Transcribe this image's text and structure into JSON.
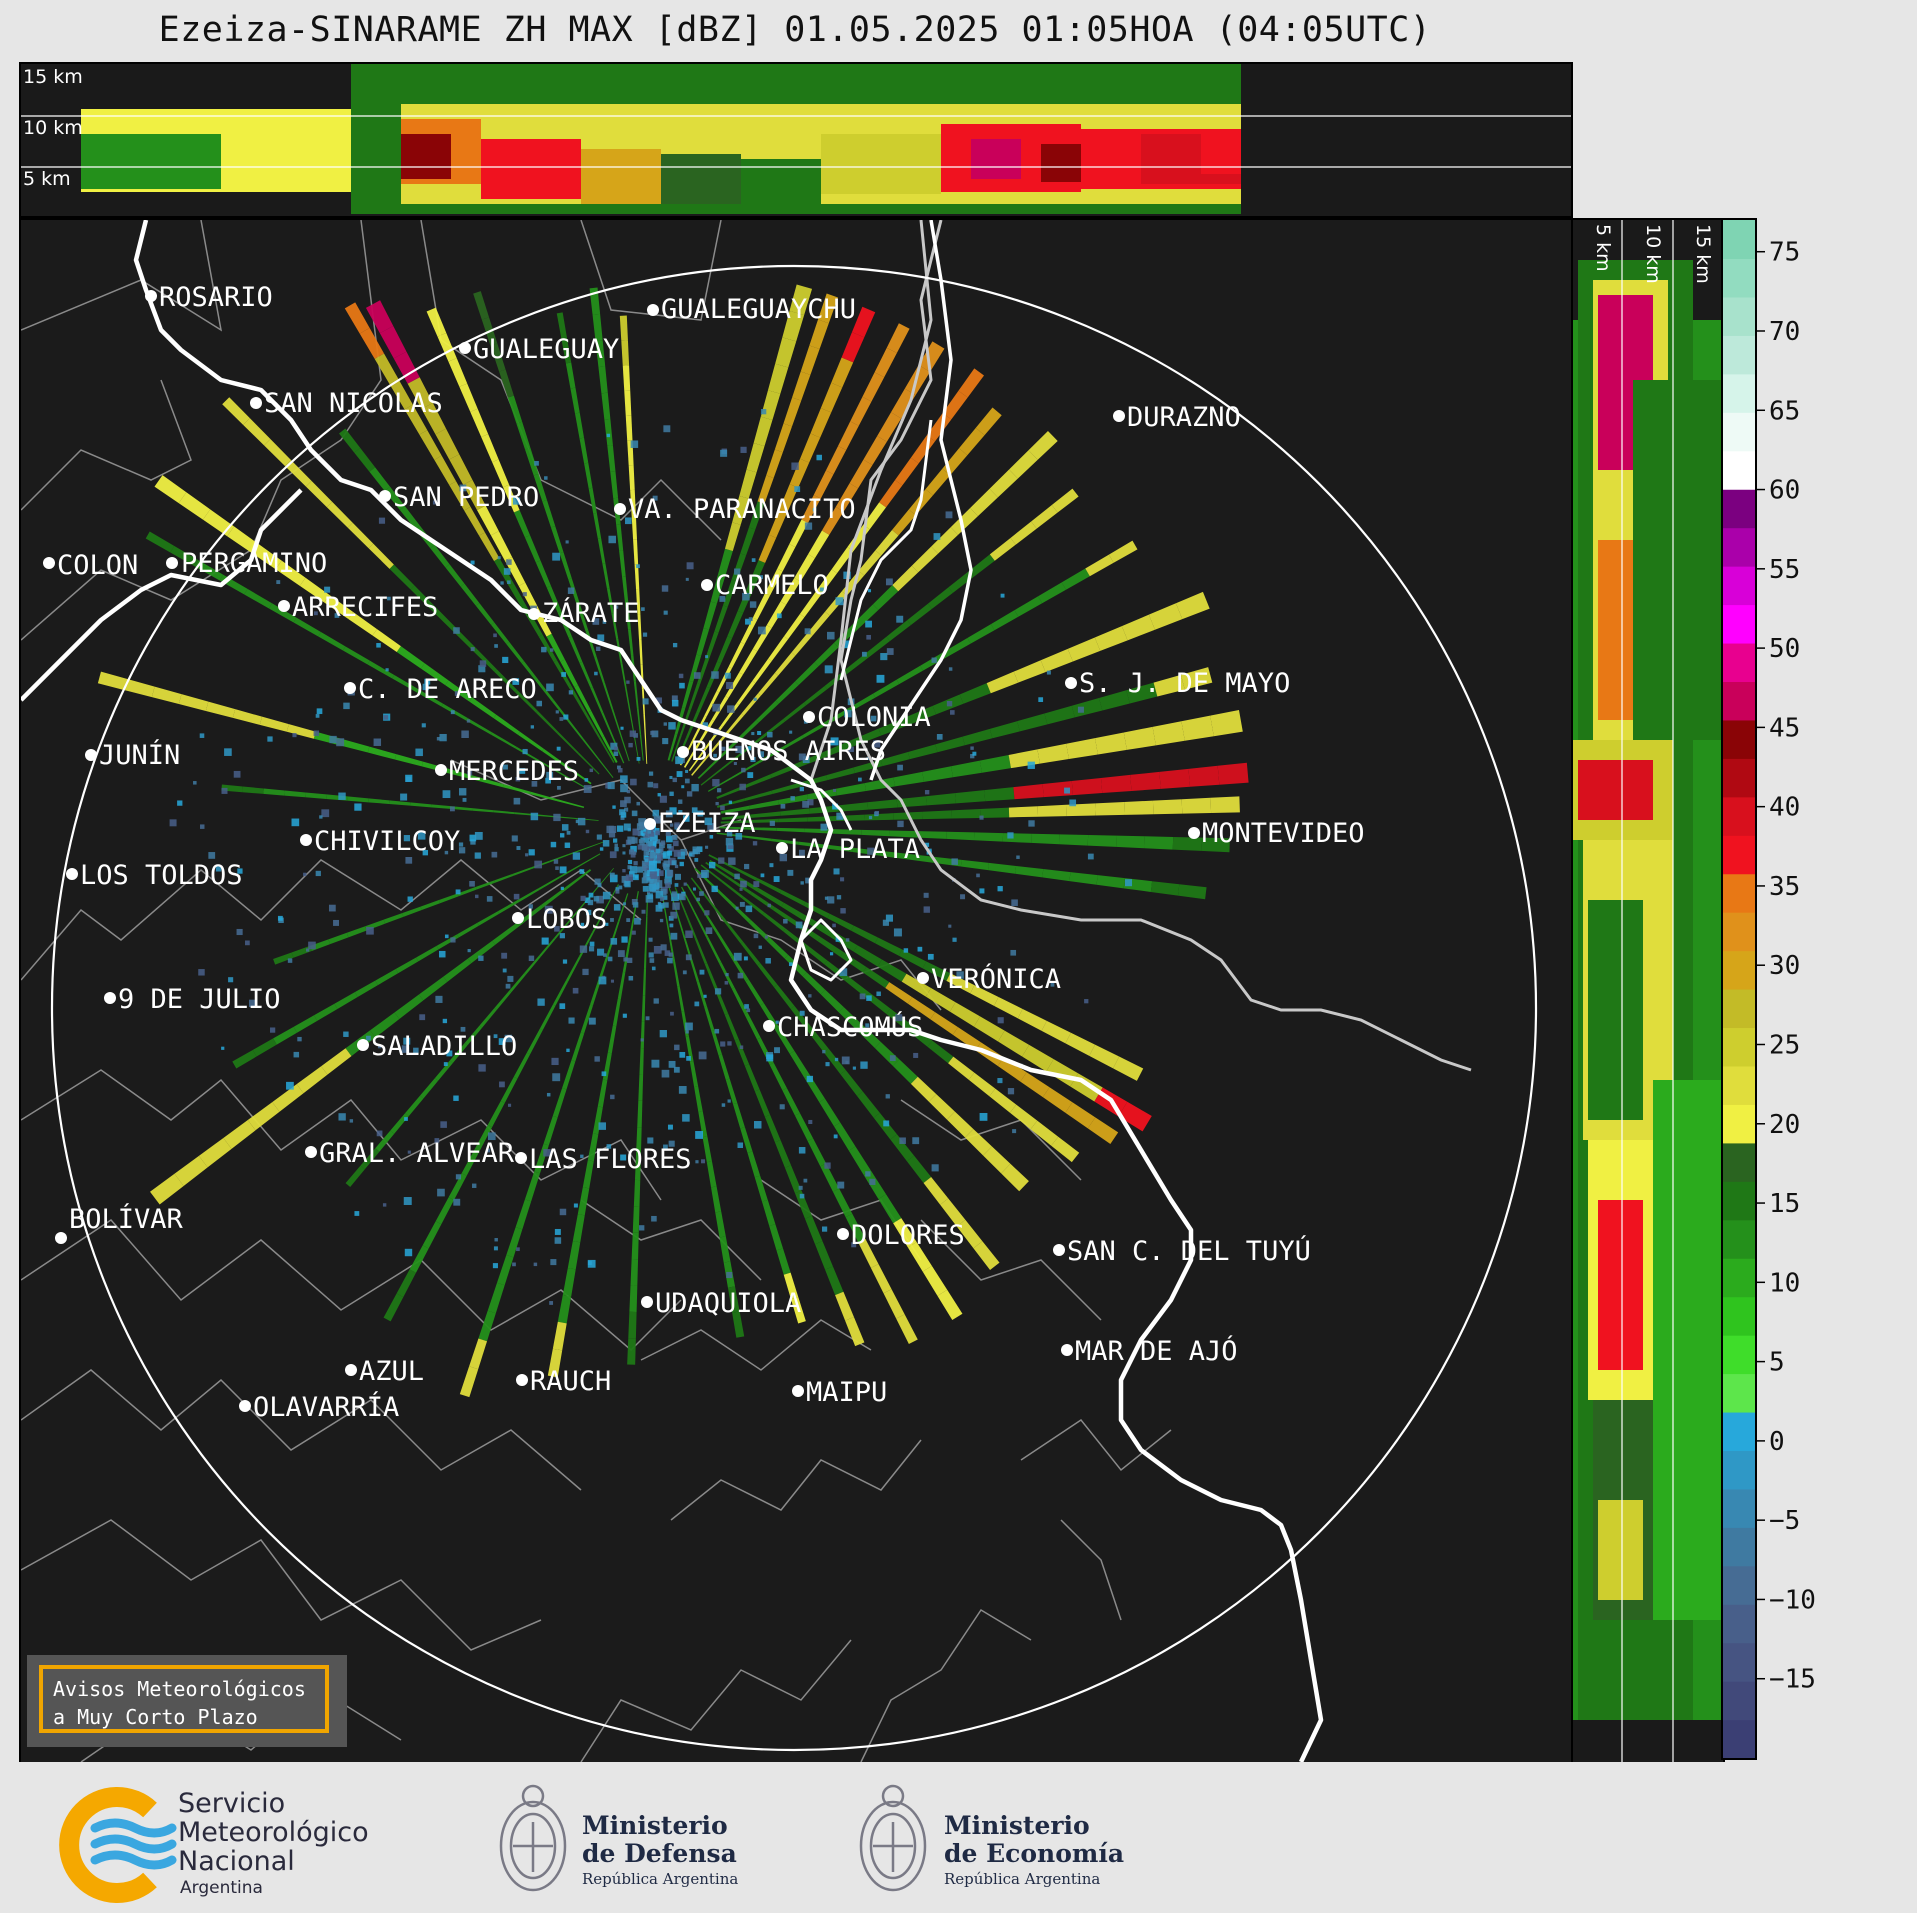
{
  "title": "Ezeiza-SINARAME ZH MAX [dBZ] 01.05.2025 01:05HOA (04:05UTC)",
  "height_labels_top": [
    "15 km",
    "10 km",
    "5 km"
  ],
  "height_labels_side": [
    "5 km",
    "10 km",
    "15 km"
  ],
  "colorbar": {
    "ticks": [
      "75",
      "70",
      "65",
      "60",
      "55",
      "50",
      "45",
      "40",
      "35",
      "30",
      "25",
      "20",
      "15",
      "10",
      "5",
      "0",
      "−5",
      "−10",
      "−15"
    ],
    "tick_values": [
      75,
      70,
      65,
      60,
      55,
      50,
      45,
      40,
      35,
      30,
      25,
      20,
      15,
      10,
      5,
      0,
      -5,
      -10,
      -15
    ],
    "range": [
      -20,
      77
    ],
    "colors": [
      "#3b3f74",
      "#41497a",
      "#465482",
      "#485f8a",
      "#466c94",
      "#3f7aa1",
      "#3888b2",
      "#2f98c6",
      "#27a8db",
      "#5de64b",
      "#3fdd2a",
      "#2fc41e",
      "#2bab1d",
      "#24901b",
      "#1f7816",
      "#2a6420",
      "#f0f043",
      "#e0dd3c",
      "#cece2e",
      "#c3bb27",
      "#d6a519",
      "#e0911b",
      "#e87815",
      "#f0121f",
      "#d8101d",
      "#b00912",
      "#8a0406",
      "#c9005a",
      "#e8008f",
      "#ff00ff",
      "#d800d8",
      "#aa00aa",
      "#7b0080",
      "#ffffff",
      "#eefaf6",
      "#d6f4ea",
      "#bde9da",
      "#a8e2cc",
      "#92dcc0",
      "#7fd4b3"
    ]
  },
  "cities": [
    {
      "name": "ROSARIO"
    },
    {
      "name": "GUALEGUAYCHU"
    },
    {
      "name": "GUALEGUAY"
    },
    {
      "name": "SAN NICOLAS"
    },
    {
      "name": "DURAZNO"
    },
    {
      "name": "SAN PEDRO"
    },
    {
      "name": "VA. PARANACITO"
    },
    {
      "name": "COLON"
    },
    {
      "name": "PERGAMINO"
    },
    {
      "name": "CARMELO"
    },
    {
      "name": "ARRECIFES"
    },
    {
      "name": "ZÁRATE"
    },
    {
      "name": "S. J. DE MAYO"
    },
    {
      "name": "C. DE ARECO"
    },
    {
      "name": "COLONIA"
    },
    {
      "name": "JUNÍN"
    },
    {
      "name": "MERCEDES"
    },
    {
      "name": "BUENOS AIRES"
    },
    {
      "name": "EZEIZA"
    },
    {
      "name": "MONTEVIDEO"
    },
    {
      "name": "CHIVILCOY"
    },
    {
      "name": "LA PLATA"
    },
    {
      "name": "LOS TOLDOS"
    },
    {
      "name": "LOBOS"
    },
    {
      "name": "VERÓNICA"
    },
    {
      "name": "9 DE JULIO"
    },
    {
      "name": "CHASCOMÚS"
    },
    {
      "name": "SALADILLO"
    },
    {
      "name": "GRAL. ALVEAR"
    },
    {
      "name": "LAS FLORES"
    },
    {
      "name": "BOLÍVAR"
    },
    {
      "name": "DOLORES"
    },
    {
      "name": "SAN C. DEL TUYÚ"
    },
    {
      "name": "UDAQUIOLA"
    },
    {
      "name": "MAR DE AJÓ"
    },
    {
      "name": "AZUL"
    },
    {
      "name": "RAUCH"
    },
    {
      "name": "MAIPU"
    },
    {
      "name": "OLAVARRÍA"
    }
  ],
  "notice": {
    "line1": "Avisos Meteorológicos",
    "line2": "a Muy Corto Plazo"
  },
  "logos": {
    "smn": {
      "line1": "Servicio",
      "line2": "Meteorológico",
      "line3": "Nacional",
      "line4": "Argentina"
    },
    "defensa": {
      "line1": "Ministerio",
      "line2": "de Defensa",
      "line3": "República Argentina"
    },
    "economia": {
      "line1": "Ministerio",
      "line2": "de Economía",
      "line3": "República Argentina"
    }
  }
}
